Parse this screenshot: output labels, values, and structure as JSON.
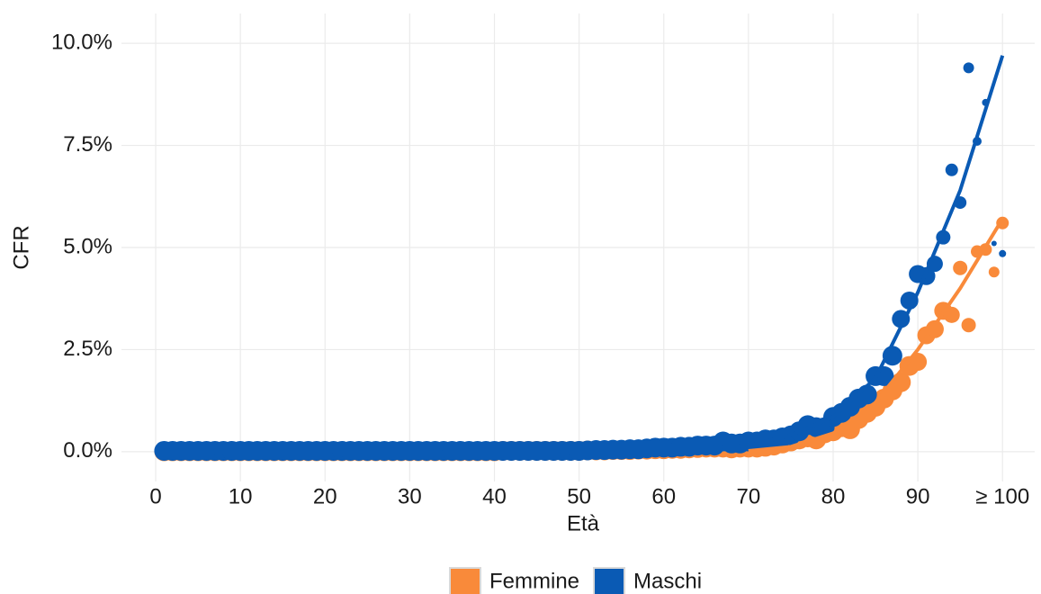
{
  "chart_data": {
    "type": "scatter",
    "x_label": "Età",
    "y_label": "CFR",
    "xlim": [
      -4.04,
      103.8
    ],
    "ylim": [
      -0.73,
      10.73
    ],
    "xticks": [
      0,
      10,
      20,
      30,
      40,
      50,
      60,
      70,
      80,
      90,
      {
        "value": 100,
        "label": "≥ 100"
      }
    ],
    "yticks": [
      {
        "value": 0,
        "label": "0.0%"
      },
      {
        "value": 2.5,
        "label": "2.5%"
      },
      {
        "value": 5,
        "label": "5.0%"
      },
      {
        "value": 7.5,
        "label": "7.5%"
      },
      {
        "value": 10,
        "label": "10.0%"
      }
    ],
    "grid": true,
    "legend": "bottom",
    "x": [
      1,
      2,
      3,
      4,
      5,
      6,
      7,
      8,
      9,
      10,
      11,
      12,
      13,
      14,
      15,
      16,
      17,
      18,
      19,
      20,
      21,
      22,
      23,
      24,
      25,
      26,
      27,
      28,
      29,
      30,
      31,
      32,
      33,
      34,
      35,
      36,
      37,
      38,
      39,
      40,
      41,
      42,
      43,
      44,
      45,
      46,
      47,
      48,
      49,
      50,
      51,
      52,
      53,
      54,
      55,
      56,
      57,
      58,
      59,
      60,
      61,
      62,
      63,
      64,
      65,
      66,
      67,
      68,
      69,
      70,
      71,
      72,
      73,
      74,
      75,
      76,
      77,
      78,
      79,
      80,
      81,
      82,
      83,
      84,
      85,
      86,
      87,
      88,
      89,
      90,
      91,
      92,
      93,
      94,
      95,
      96,
      97,
      98,
      99,
      100
    ],
    "series": [
      {
        "name": "Femmine",
        "color": "#f98a3a",
        "values": [
          0.01,
          0.01,
          0.01,
          0.01,
          0.01,
          0.01,
          0.01,
          0.01,
          0.01,
          0.01,
          0.01,
          0.01,
          0.01,
          0.01,
          0.01,
          0.01,
          0.01,
          0.01,
          0.01,
          0.01,
          0.01,
          0.01,
          0.01,
          0.01,
          0.01,
          0.01,
          0.01,
          0.01,
          0.01,
          0.01,
          0.01,
          0.01,
          0.01,
          0.01,
          0.01,
          0.01,
          0.01,
          0.01,
          0.01,
          0.01,
          0.02,
          0.02,
          0.02,
          0.02,
          0.02,
          0.02,
          0.02,
          0.02,
          0.02,
          0.02,
          0.03,
          0.03,
          0.03,
          0.04,
          0.04,
          0.04,
          0.05,
          0.05,
          0.06,
          0.06,
          0.07,
          0.07,
          0.08,
          0.09,
          0.1,
          0.1,
          0.1,
          0.08,
          0.1,
          0.1,
          0.1,
          0.12,
          0.15,
          0.2,
          0.25,
          0.3,
          0.35,
          0.3,
          0.45,
          0.5,
          0.6,
          0.55,
          0.8,
          0.95,
          1.1,
          1.3,
          1.5,
          1.7,
          2.1,
          2.2,
          2.85,
          3.0,
          3.45,
          3.35,
          4.5,
          3.1,
          4.9,
          4.95,
          4.4,
          5.6
        ],
        "sizes": [
          11,
          11,
          11,
          11,
          11,
          11,
          11,
          11,
          11,
          11,
          11,
          11,
          11,
          11,
          11,
          11,
          11,
          11,
          11,
          11,
          11,
          11,
          11,
          11,
          11,
          11,
          11,
          11,
          11,
          11,
          11,
          11,
          11,
          11,
          11,
          11,
          11,
          11,
          11,
          11,
          11,
          11,
          11,
          11,
          11,
          11,
          11,
          11,
          11,
          11,
          11,
          11,
          11,
          11,
          11,
          11,
          11,
          11,
          11,
          11,
          11,
          11,
          11,
          11,
          11,
          11,
          11,
          11,
          11,
          11,
          11,
          11,
          11,
          11,
          11,
          11,
          11,
          11,
          11,
          11,
          11,
          11,
          11,
          11,
          11,
          11,
          11,
          11,
          11,
          10,
          10,
          10,
          10,
          9,
          8,
          8,
          7,
          7,
          6,
          7
        ],
        "fit_x": [
          70,
          75,
          80,
          85,
          90,
          95,
          100
        ],
        "fit": [
          0.02,
          0.12,
          0.45,
          1.2,
          2.5,
          4.0,
          5.7
        ]
      },
      {
        "name": "Maschi",
        "color": "#0a5ab4",
        "values": [
          0.02,
          0.02,
          0.02,
          0.02,
          0.02,
          0.02,
          0.02,
          0.02,
          0.02,
          0.02,
          0.02,
          0.02,
          0.02,
          0.02,
          0.02,
          0.02,
          0.02,
          0.02,
          0.02,
          0.02,
          0.02,
          0.02,
          0.02,
          0.02,
          0.02,
          0.02,
          0.02,
          0.02,
          0.02,
          0.02,
          0.02,
          0.02,
          0.02,
          0.02,
          0.02,
          0.02,
          0.02,
          0.02,
          0.02,
          0.02,
          0.02,
          0.02,
          0.02,
          0.02,
          0.02,
          0.02,
          0.02,
          0.02,
          0.02,
          0.02,
          0.03,
          0.04,
          0.04,
          0.05,
          0.05,
          0.06,
          0.06,
          0.08,
          0.1,
          0.1,
          0.1,
          0.12,
          0.12,
          0.15,
          0.15,
          0.15,
          0.25,
          0.2,
          0.2,
          0.25,
          0.25,
          0.3,
          0.3,
          0.35,
          0.4,
          0.5,
          0.65,
          0.6,
          0.6,
          0.85,
          0.95,
          1.1,
          1.3,
          1.4,
          1.85,
          1.85,
          2.35,
          3.25,
          3.7,
          4.35,
          4.3,
          4.6,
          5.25,
          6.9,
          6.1,
          9.4,
          7.6,
          8.55,
          5.1,
          4.85
        ],
        "sizes": [
          11,
          11,
          11,
          11,
          11,
          11,
          11,
          11,
          11,
          11,
          11,
          11,
          11,
          11,
          11,
          11,
          11,
          11,
          11,
          11,
          11,
          11,
          11,
          11,
          11,
          11,
          11,
          11,
          11,
          11,
          11,
          11,
          11,
          11,
          11,
          11,
          11,
          11,
          11,
          11,
          11,
          11,
          11,
          11,
          11,
          11,
          11,
          11,
          11,
          11,
          11,
          11,
          11,
          11,
          11,
          11,
          11,
          11,
          11,
          11,
          11,
          11,
          11,
          11,
          11,
          11,
          11,
          11,
          11,
          11,
          11,
          11,
          11,
          11,
          11,
          11,
          11,
          11,
          11,
          11,
          11,
          11,
          11,
          11,
          11,
          11,
          11,
          10,
          10,
          10,
          10,
          9,
          8,
          7,
          7,
          6,
          5,
          4,
          3,
          4
        ],
        "fit_x": [
          65,
          70,
          75,
          80,
          85,
          90,
          95,
          100
        ],
        "fit": [
          0.1,
          0.15,
          0.4,
          0.85,
          1.8,
          3.9,
          6.4,
          9.7
        ]
      }
    ]
  }
}
